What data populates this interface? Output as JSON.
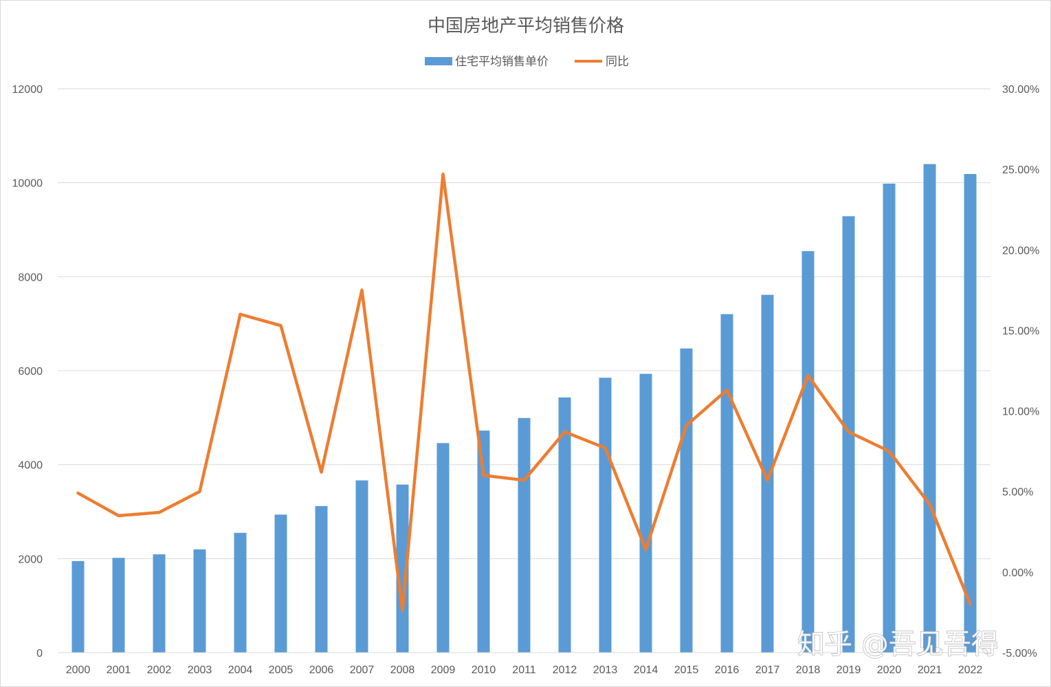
{
  "chart_data": {
    "type": "bar",
    "title": "中国房地产平均销售价格",
    "categories": [
      "2000",
      "2001",
      "2002",
      "2003",
      "2004",
      "2005",
      "2006",
      "2007",
      "2008",
      "2009",
      "2010",
      "2011",
      "2012",
      "2013",
      "2014",
      "2015",
      "2016",
      "2017",
      "2018",
      "2019",
      "2020",
      "2021",
      "2022"
    ],
    "series": [
      {
        "name": "住宅平均销售单价",
        "type": "bar",
        "axis": "left",
        "color": "#5b9bd5",
        "values": [
          1948,
          2017,
          2092,
          2197,
          2549,
          2937,
          3119,
          3665,
          3576,
          4459,
          4725,
          4993,
          5430,
          5850,
          5933,
          6473,
          7203,
          7614,
          8544,
          9287,
          9980,
          10396,
          10185
        ]
      },
      {
        "name": "同比",
        "type": "line",
        "axis": "right",
        "color": "#ed7d31",
        "values": [
          4.9,
          3.5,
          3.7,
          5.0,
          16.0,
          15.3,
          6.2,
          17.5,
          -2.4,
          24.7,
          6.0,
          5.7,
          8.7,
          7.7,
          1.4,
          9.1,
          11.3,
          5.7,
          12.2,
          8.7,
          7.5,
          4.2,
          -2.0
        ]
      }
    ],
    "y_left": {
      "min": 0,
      "max": 12000,
      "ticks": [
        "0",
        "2000",
        "4000",
        "6000",
        "8000",
        "10000",
        "12000"
      ]
    },
    "y_right": {
      "min": -5,
      "max": 30,
      "ticks": [
        "-5.00%",
        "0.00%",
        "5.00%",
        "10.00%",
        "15.00%",
        "20.00%",
        "25.00%",
        "30.00%"
      ]
    },
    "grid": true,
    "legend_position": "top-center"
  },
  "watermark": "知乎 @吾见吾得"
}
